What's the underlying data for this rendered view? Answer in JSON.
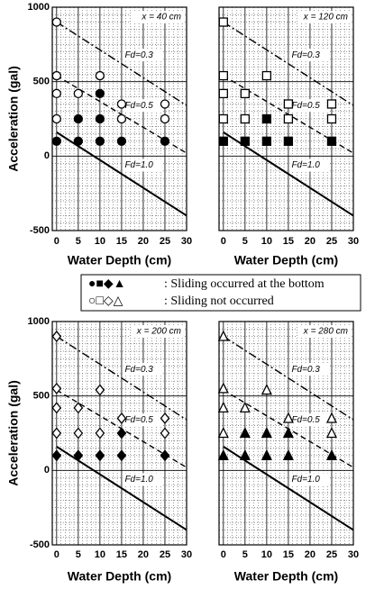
{
  "chart_data": [
    {
      "type": "scatter",
      "annotation": "x = 40 cm",
      "marker": "circle",
      "x_label": "Water Depth (cm)",
      "y_label": "Acceleration (gal)",
      "xlim": [
        -1,
        30
      ],
      "xticks": [
        0,
        5,
        10,
        15,
        20,
        25,
        30
      ],
      "ylim": [
        -500,
        1000
      ],
      "yticks": [
        -500,
        0,
        500,
        1000
      ],
      "grid": true,
      "minor_grid": true,
      "color": "#000000",
      "series": [
        {
          "filled": true,
          "x": [
            0,
            5,
            5,
            10,
            10,
            10,
            15,
            25
          ],
          "values": [
            100,
            250,
            100,
            420,
            250,
            100,
            100,
            100
          ]
        },
        {
          "filled": false,
          "x": [
            0,
            0,
            0,
            0,
            5,
            10,
            15,
            15,
            25,
            25
          ],
          "values": [
            900,
            540,
            420,
            250,
            420,
            540,
            350,
            250,
            350,
            250
          ]
        }
      ],
      "lines": [
        {
          "label": "Fd=0.3",
          "dash": "dashdot",
          "x": [
            0,
            30
          ],
          "values": [
            900,
            340
          ]
        },
        {
          "label": "Fd=0.5",
          "dash": "dash",
          "x": [
            0,
            30
          ],
          "values": [
            540,
            20
          ]
        },
        {
          "label": "Fd=1.0",
          "dash": "solid",
          "x": [
            0,
            30
          ],
          "values": [
            160,
            -400
          ]
        }
      ]
    },
    {
      "type": "scatter",
      "annotation": "x = 120 cm",
      "marker": "square",
      "x_label": "Water Depth (cm)",
      "xlim": [
        -1,
        30
      ],
      "xticks": [
        0,
        5,
        10,
        15,
        20,
        25,
        30
      ],
      "ylim": [
        -500,
        1000
      ],
      "yticks": [
        -500,
        0,
        500,
        1000
      ],
      "grid": true,
      "minor_grid": true,
      "color": "#000000",
      "series": [
        {
          "filled": true,
          "x": [
            0,
            5,
            10,
            10,
            15,
            25
          ],
          "values": [
            100,
            100,
            250,
            100,
            100,
            100
          ]
        },
        {
          "filled": false,
          "x": [
            0,
            0,
            0,
            0,
            5,
            5,
            10,
            15,
            15,
            25,
            25
          ],
          "values": [
            900,
            540,
            420,
            250,
            420,
            250,
            540,
            350,
            250,
            350,
            250
          ]
        }
      ],
      "lines": [
        {
          "label": "Fd=0.3",
          "dash": "dashdot",
          "x": [
            0,
            30
          ],
          "values": [
            900,
            340
          ]
        },
        {
          "label": "Fd=0.5",
          "dash": "dash",
          "x": [
            0,
            30
          ],
          "values": [
            540,
            20
          ]
        },
        {
          "label": "Fd=1.0",
          "dash": "solid",
          "x": [
            0,
            30
          ],
          "values": [
            160,
            -400
          ]
        }
      ]
    },
    {
      "type": "scatter",
      "annotation": "x = 200 cm",
      "marker": "diamond",
      "x_label": "Water Depth (cm)",
      "y_label": "Acceleration (gal)",
      "xlim": [
        -1,
        30
      ],
      "xticks": [
        0,
        5,
        10,
        15,
        20,
        25,
        30
      ],
      "ylim": [
        -500,
        1000
      ],
      "yticks": [
        -500,
        0,
        500,
        1000
      ],
      "grid": true,
      "minor_grid": true,
      "color": "#000000",
      "series": [
        {
          "filled": true,
          "x": [
            0,
            5,
            10,
            15,
            15,
            25
          ],
          "values": [
            100,
            100,
            100,
            250,
            100,
            100
          ]
        },
        {
          "filled": false,
          "x": [
            0,
            0,
            0,
            0,
            5,
            5,
            10,
            10,
            15,
            25,
            25
          ],
          "values": [
            900,
            550,
            420,
            250,
            420,
            250,
            540,
            250,
            350,
            350,
            250
          ]
        }
      ],
      "lines": [
        {
          "label": "Fd=0.3",
          "dash": "dashdot",
          "x": [
            0,
            30
          ],
          "values": [
            900,
            340
          ]
        },
        {
          "label": "Fd=0.5",
          "dash": "dash",
          "x": [
            0,
            30
          ],
          "values": [
            540,
            20
          ]
        },
        {
          "label": "Fd=1.0",
          "dash": "solid",
          "x": [
            0,
            30
          ],
          "values": [
            160,
            -400
          ]
        }
      ]
    },
    {
      "type": "scatter",
      "annotation": "x = 280 cm",
      "marker": "triangle",
      "x_label": "Water Depth (cm)",
      "xlim": [
        -1,
        30
      ],
      "xticks": [
        0,
        5,
        10,
        15,
        20,
        25,
        30
      ],
      "ylim": [
        -500,
        1000
      ],
      "yticks": [
        -500,
        0,
        500,
        1000
      ],
      "grid": true,
      "minor_grid": true,
      "color": "#000000",
      "series": [
        {
          "filled": true,
          "x": [
            0,
            5,
            5,
            10,
            10,
            15,
            15,
            25
          ],
          "values": [
            100,
            250,
            100,
            250,
            100,
            250,
            100,
            100
          ]
        },
        {
          "filled": false,
          "x": [
            0,
            0,
            0,
            0,
            5,
            10,
            15,
            25,
            25
          ],
          "values": [
            900,
            550,
            420,
            250,
            420,
            540,
            350,
            350,
            250
          ]
        }
      ],
      "lines": [
        {
          "label": "Fd=0.3",
          "dash": "dashdot",
          "x": [
            0,
            30
          ],
          "values": [
            900,
            340
          ]
        },
        {
          "label": "Fd=0.5",
          "dash": "dash",
          "x": [
            0,
            30
          ],
          "values": [
            540,
            20
          ]
        },
        {
          "label": "Fd=1.0",
          "dash": "solid",
          "x": [
            0,
            30
          ],
          "values": [
            160,
            -400
          ]
        }
      ]
    }
  ],
  "legend": {
    "filled_symbols": "●■◆▲",
    "filled_text": ": Sliding occurred at the bottom",
    "open_symbols": "○□◇△",
    "open_text": ": Sliding not occurred"
  }
}
